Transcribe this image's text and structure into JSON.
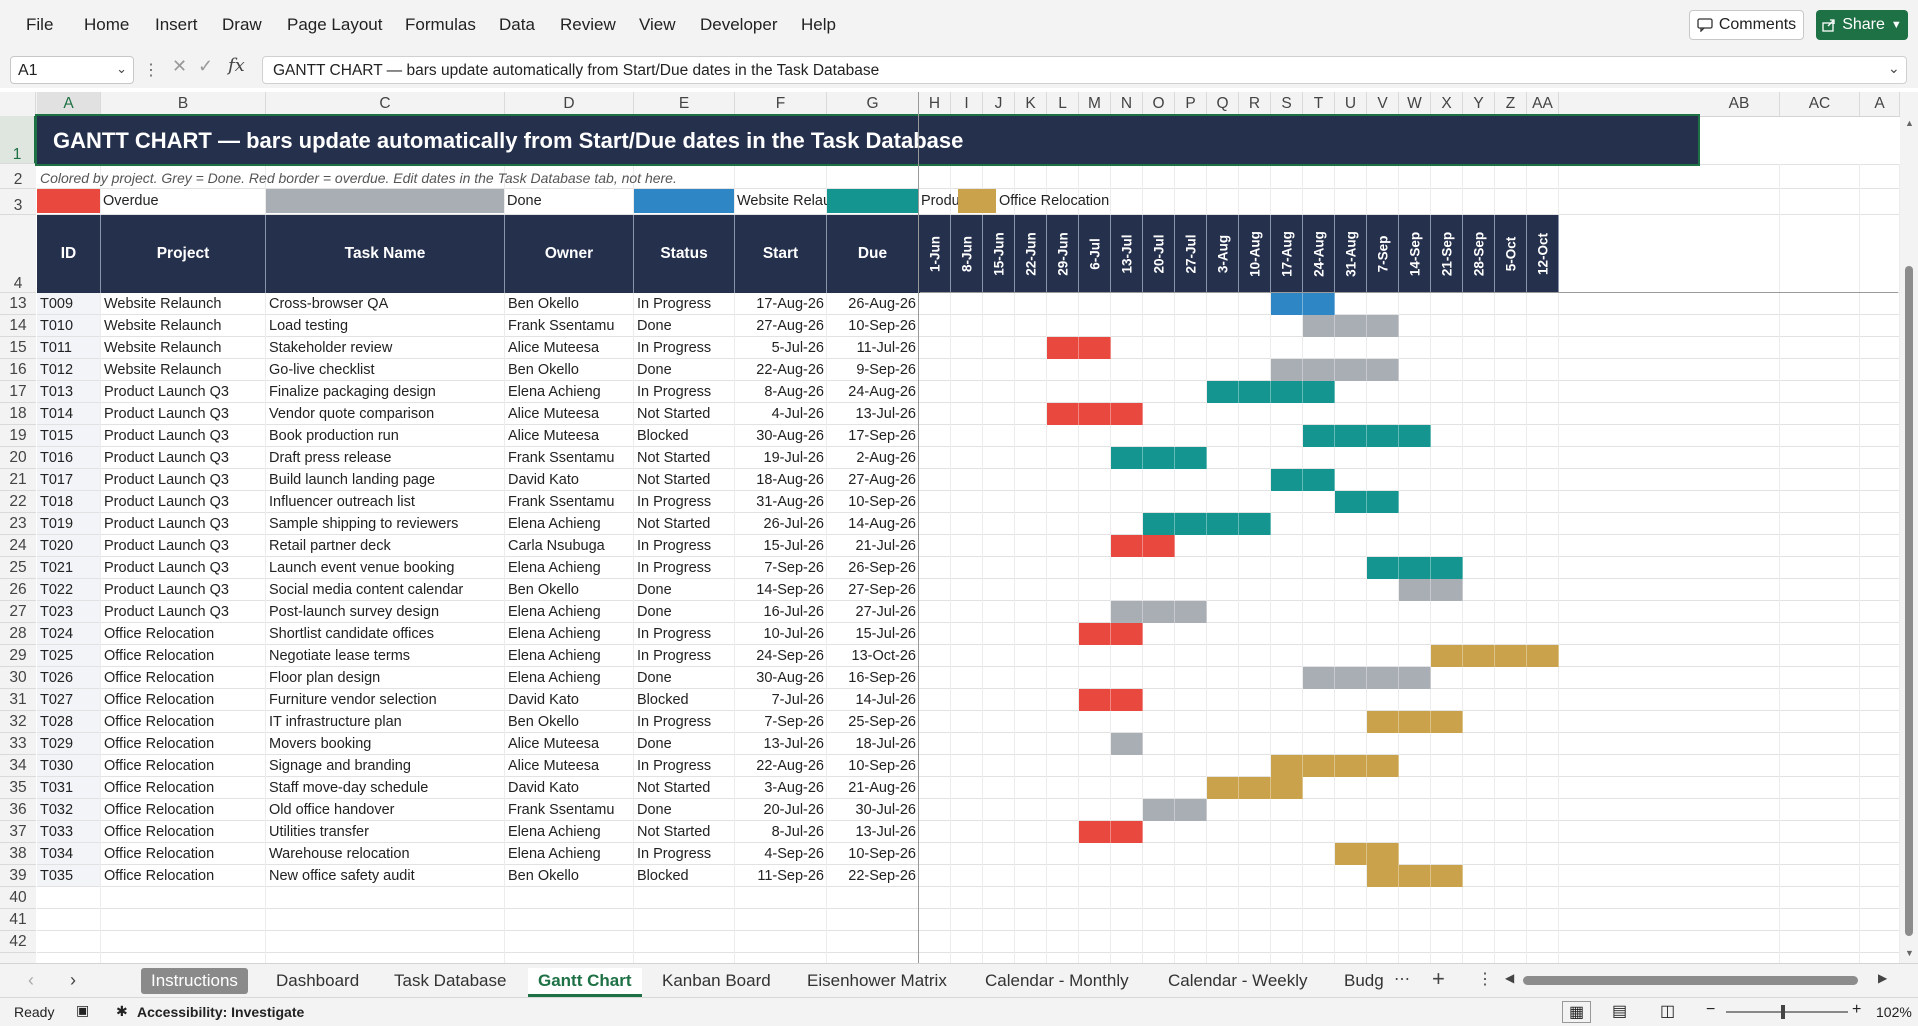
{
  "menu": [
    "File",
    "Home",
    "Insert",
    "Draw",
    "Page Layout",
    "Formulas",
    "Data",
    "Review",
    "View",
    "Developer",
    "Help"
  ],
  "buttons": {
    "comments": "Comments",
    "share": "Share"
  },
  "formula_bar": {
    "name_box": "A1",
    "fx": "fx",
    "formula": "GANTT CHART  —  bars update automatically from Start/Due dates in the Task Database"
  },
  "columns": [
    "A",
    "B",
    "C",
    "D",
    "E",
    "F",
    "G",
    "H",
    "I",
    "J",
    "K",
    "L",
    "M",
    "N",
    "O",
    "P",
    "Q",
    "R",
    "S",
    "T",
    "U",
    "V",
    "W",
    "X",
    "Y",
    "Z",
    "AA",
    "AB",
    "AC",
    "A"
  ],
  "sheet": {
    "title": "GANTT CHART  —  bars update automatically from Start/Due dates in the Task Database",
    "note": "Colored by project. Grey = Done. Red border = overdue. Edit dates in the Task Database tab, not here.",
    "legend": [
      {
        "label": "Overdue",
        "color": "#e8483d"
      },
      {
        "label": "Done",
        "color": "#a9adb4"
      },
      {
        "label": "Website Relaunch",
        "color": "#2e86c5"
      },
      {
        "label": "Product Lau",
        "color": "#15958f"
      },
      {
        "label": "Office Relocation",
        "color": "#c9a24b"
      }
    ],
    "headers": [
      "ID",
      "Project",
      "Task Name",
      "Owner",
      "Status",
      "Start",
      "Due"
    ],
    "weeks": [
      "1-Jun",
      "8-Jun",
      "15-Jun",
      "22-Jun",
      "29-Jun",
      "6-Jul",
      "13-Jul",
      "20-Jul",
      "27-Jul",
      "3-Aug",
      "10-Aug",
      "17-Aug",
      "24-Aug",
      "31-Aug",
      "7-Sep",
      "14-Sep",
      "21-Sep",
      "28-Sep",
      "5-Oct",
      "12-Oct"
    ],
    "row_numbers": [
      "1",
      "2",
      "3",
      "4",
      "13",
      "14",
      "15",
      "16",
      "17",
      "18",
      "19",
      "20",
      "21",
      "22",
      "23",
      "24",
      "25",
      "26",
      "27",
      "28",
      "29",
      "30",
      "31",
      "32",
      "33",
      "34",
      "35",
      "36",
      "37",
      "38",
      "39",
      "40",
      "41",
      "42"
    ],
    "tasks": [
      {
        "id": "T009",
        "project": "Website Relaunch",
        "task": "Cross-browser QA",
        "owner": "Ben Okello",
        "status": "In Progress",
        "start": "17-Aug-26",
        "due": "26-Aug-26",
        "bar_start_week": 11,
        "bar_weeks": 2,
        "color": "#2e86c5"
      },
      {
        "id": "T010",
        "project": "Website Relaunch",
        "task": "Load testing",
        "owner": "Frank Ssentamu",
        "status": "Done",
        "start": "27-Aug-26",
        "due": "10-Sep-26",
        "bar_start_week": 12,
        "bar_weeks": 3,
        "color": "#a9adb4"
      },
      {
        "id": "T011",
        "project": "Website Relaunch",
        "task": "Stakeholder review",
        "owner": "Alice Muteesa",
        "status": "In Progress",
        "start": "5-Jul-26",
        "due": "11-Jul-26",
        "bar_start_week": 4,
        "bar_weeks": 2,
        "color": "#e8483d"
      },
      {
        "id": "T012",
        "project": "Website Relaunch",
        "task": "Go-live checklist",
        "owner": "Ben Okello",
        "status": "Done",
        "start": "22-Aug-26",
        "due": "9-Sep-26",
        "bar_start_week": 11,
        "bar_weeks": 4,
        "color": "#a9adb4"
      },
      {
        "id": "T013",
        "project": "Product Launch Q3",
        "task": "Finalize packaging design",
        "owner": "Elena Achieng",
        "status": "In Progress",
        "start": "8-Aug-26",
        "due": "24-Aug-26",
        "bar_start_week": 9,
        "bar_weeks": 4,
        "color": "#15958f"
      },
      {
        "id": "T014",
        "project": "Product Launch Q3",
        "task": "Vendor quote comparison",
        "owner": "Alice Muteesa",
        "status": "Not Started",
        "start": "4-Jul-26",
        "due": "13-Jul-26",
        "bar_start_week": 4,
        "bar_weeks": 3,
        "color": "#e8483d"
      },
      {
        "id": "T015",
        "project": "Product Launch Q3",
        "task": "Book production run",
        "owner": "Alice Muteesa",
        "status": "Blocked",
        "start": "30-Aug-26",
        "due": "17-Sep-26",
        "bar_start_week": 12,
        "bar_weeks": 4,
        "color": "#15958f"
      },
      {
        "id": "T016",
        "project": "Product Launch Q3",
        "task": "Draft press release",
        "owner": "Frank Ssentamu",
        "status": "Not Started",
        "start": "19-Jul-26",
        "due": "2-Aug-26",
        "bar_start_week": 6,
        "bar_weeks": 3,
        "color": "#15958f"
      },
      {
        "id": "T017",
        "project": "Product Launch Q3",
        "task": "Build launch landing page",
        "owner": "David Kato",
        "status": "Not Started",
        "start": "18-Aug-26",
        "due": "27-Aug-26",
        "bar_start_week": 11,
        "bar_weeks": 2,
        "color": "#15958f"
      },
      {
        "id": "T018",
        "project": "Product Launch Q3",
        "task": "Influencer outreach list",
        "owner": "Frank Ssentamu",
        "status": "In Progress",
        "start": "31-Aug-26",
        "due": "10-Sep-26",
        "bar_start_week": 13,
        "bar_weeks": 2,
        "color": "#15958f"
      },
      {
        "id": "T019",
        "project": "Product Launch Q3",
        "task": "Sample shipping to reviewers",
        "owner": "Elena Achieng",
        "status": "Not Started",
        "start": "26-Jul-26",
        "due": "14-Aug-26",
        "bar_start_week": 7,
        "bar_weeks": 4,
        "color": "#15958f"
      },
      {
        "id": "T020",
        "project": "Product Launch Q3",
        "task": "Retail partner deck",
        "owner": "Carla Nsubuga",
        "status": "In Progress",
        "start": "15-Jul-26",
        "due": "21-Jul-26",
        "bar_start_week": 6,
        "bar_weeks": 2,
        "color": "#e8483d"
      },
      {
        "id": "T021",
        "project": "Product Launch Q3",
        "task": "Launch event venue booking",
        "owner": "Elena Achieng",
        "status": "In Progress",
        "start": "7-Sep-26",
        "due": "26-Sep-26",
        "bar_start_week": 14,
        "bar_weeks": 3,
        "color": "#15958f"
      },
      {
        "id": "T022",
        "project": "Product Launch Q3",
        "task": "Social media content calendar",
        "owner": "Ben Okello",
        "status": "Done",
        "start": "14-Sep-26",
        "due": "27-Sep-26",
        "bar_start_week": 15,
        "bar_weeks": 2,
        "color": "#a9adb4"
      },
      {
        "id": "T023",
        "project": "Product Launch Q3",
        "task": "Post-launch survey design",
        "owner": "Elena Achieng",
        "status": "Done",
        "start": "16-Jul-26",
        "due": "27-Jul-26",
        "bar_start_week": 6,
        "bar_weeks": 3,
        "color": "#a9adb4"
      },
      {
        "id": "T024",
        "project": "Office Relocation",
        "task": "Shortlist candidate offices",
        "owner": "Elena Achieng",
        "status": "In Progress",
        "start": "10-Jul-26",
        "due": "15-Jul-26",
        "bar_start_week": 5,
        "bar_weeks": 2,
        "color": "#e8483d"
      },
      {
        "id": "T025",
        "project": "Office Relocation",
        "task": "Negotiate lease terms",
        "owner": "Elena Achieng",
        "status": "In Progress",
        "start": "24-Sep-26",
        "due": "13-Oct-26",
        "bar_start_week": 16,
        "bar_weeks": 4,
        "color": "#c9a24b"
      },
      {
        "id": "T026",
        "project": "Office Relocation",
        "task": "Floor plan design",
        "owner": "Elena Achieng",
        "status": "Done",
        "start": "30-Aug-26",
        "due": "16-Sep-26",
        "bar_start_week": 12,
        "bar_weeks": 4,
        "color": "#a9adb4"
      },
      {
        "id": "T027",
        "project": "Office Relocation",
        "task": "Furniture vendor selection",
        "owner": "David Kato",
        "status": "Blocked",
        "start": "7-Jul-26",
        "due": "14-Jul-26",
        "bar_start_week": 5,
        "bar_weeks": 2,
        "color": "#e8483d"
      },
      {
        "id": "T028",
        "project": "Office Relocation",
        "task": "IT infrastructure plan",
        "owner": "Ben Okello",
        "status": "In Progress",
        "start": "7-Sep-26",
        "due": "25-Sep-26",
        "bar_start_week": 14,
        "bar_weeks": 3,
        "color": "#c9a24b"
      },
      {
        "id": "T029",
        "project": "Office Relocation",
        "task": "Movers booking",
        "owner": "Alice Muteesa",
        "status": "Done",
        "start": "13-Jul-26",
        "due": "18-Jul-26",
        "bar_start_week": 6,
        "bar_weeks": 1,
        "color": "#a9adb4"
      },
      {
        "id": "T030",
        "project": "Office Relocation",
        "task": "Signage and branding",
        "owner": "Alice Muteesa",
        "status": "In Progress",
        "start": "22-Aug-26",
        "due": "10-Sep-26",
        "bar_start_week": 11,
        "bar_weeks": 4,
        "color": "#c9a24b"
      },
      {
        "id": "T031",
        "project": "Office Relocation",
        "task": "Staff move-day schedule",
        "owner": "David Kato",
        "status": "Not Started",
        "start": "3-Aug-26",
        "due": "21-Aug-26",
        "bar_start_week": 9,
        "bar_weeks": 3,
        "color": "#c9a24b"
      },
      {
        "id": "T032",
        "project": "Office Relocation",
        "task": "Old office handover",
        "owner": "Frank Ssentamu",
        "status": "Done",
        "start": "20-Jul-26",
        "due": "30-Jul-26",
        "bar_start_week": 7,
        "bar_weeks": 2,
        "color": "#a9adb4"
      },
      {
        "id": "T033",
        "project": "Office Relocation",
        "task": "Utilities transfer",
        "owner": "Elena Achieng",
        "status": "Not Started",
        "start": "8-Jul-26",
        "due": "13-Jul-26",
        "bar_start_week": 5,
        "bar_weeks": 2,
        "color": "#e8483d"
      },
      {
        "id": "T034",
        "project": "Office Relocation",
        "task": "Warehouse relocation",
        "owner": "Elena Achieng",
        "status": "In Progress",
        "start": "4-Sep-26",
        "due": "10-Sep-26",
        "bar_start_week": 13,
        "bar_weeks": 2,
        "color": "#c9a24b"
      },
      {
        "id": "T035",
        "project": "Office Relocation",
        "task": "New office safety audit",
        "owner": "Ben Okello",
        "status": "Blocked",
        "start": "11-Sep-26",
        "due": "22-Sep-26",
        "bar_start_week": 14,
        "bar_weeks": 3,
        "color": "#c9a24b"
      }
    ]
  },
  "tabs": [
    "Instructions",
    "Dashboard",
    "Task Database",
    "Gantt Chart",
    "Kanban Board",
    "Eisenhower Matrix",
    "Calendar - Monthly",
    "Calendar - Weekly",
    "Budg"
  ],
  "active_tab": "Gantt Chart",
  "status": {
    "ready": "Ready",
    "accessibility": "Accessibility: Investigate",
    "zoom": "102%"
  },
  "colors": {
    "header_navy": "#25304d",
    "accent_green": "#1e7145"
  }
}
